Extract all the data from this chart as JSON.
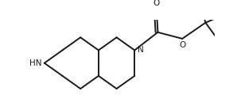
{
  "background_color": "#ffffff",
  "line_color": "#1a1a1a",
  "line_width": 1.4,
  "font_size": 7.5,
  "figsize": [
    2.98,
    1.34
  ],
  "dpi": 100,
  "atoms": {
    "HN": {
      "label": "HN",
      "ha": "right",
      "va": "center"
    },
    "N": {
      "label": "N",
      "ha": "left",
      "va": "center"
    },
    "O_carbonyl": {
      "label": "O",
      "ha": "center",
      "va": "bottom"
    },
    "O_ester": {
      "label": "O",
      "ha": "center",
      "va": "center"
    }
  }
}
